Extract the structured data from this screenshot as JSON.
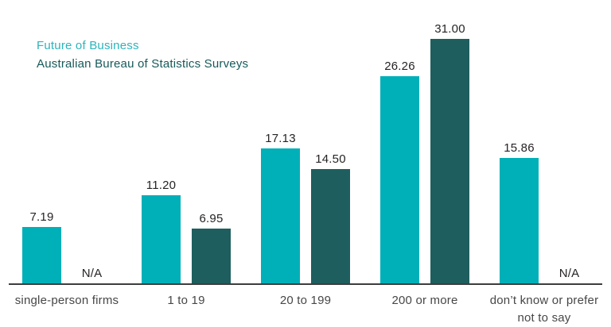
{
  "chart_data": {
    "type": "bar",
    "title": "",
    "xlabel": "",
    "ylabel": "",
    "ylim": [
      0,
      31
    ],
    "grid": false,
    "data_labels": true,
    "legend_position": "top-left",
    "missing_label": "N/A",
    "categories": [
      "single-person firms",
      "1 to 19",
      "20 to 199",
      "200 or more",
      "don’t know or prefer not to say"
    ],
    "series": [
      {
        "name": "Future of Business",
        "color": "#00b0b8",
        "text_color": "#2cb4bb",
        "values": [
          7.19,
          11.2,
          17.13,
          26.26,
          15.86
        ],
        "labels": [
          "7.19",
          "11.20",
          "17.13",
          "26.26",
          "15.86"
        ]
      },
      {
        "name": "Australian Bureau of Statistics Surveys",
        "color": "#1e5e5e",
        "text_color": "#17595a",
        "values": [
          null,
          6.95,
          14.5,
          31.0,
          null
        ],
        "labels": [
          "N/A",
          "6.95",
          "14.50",
          "31.00",
          "N/A"
        ]
      }
    ]
  }
}
